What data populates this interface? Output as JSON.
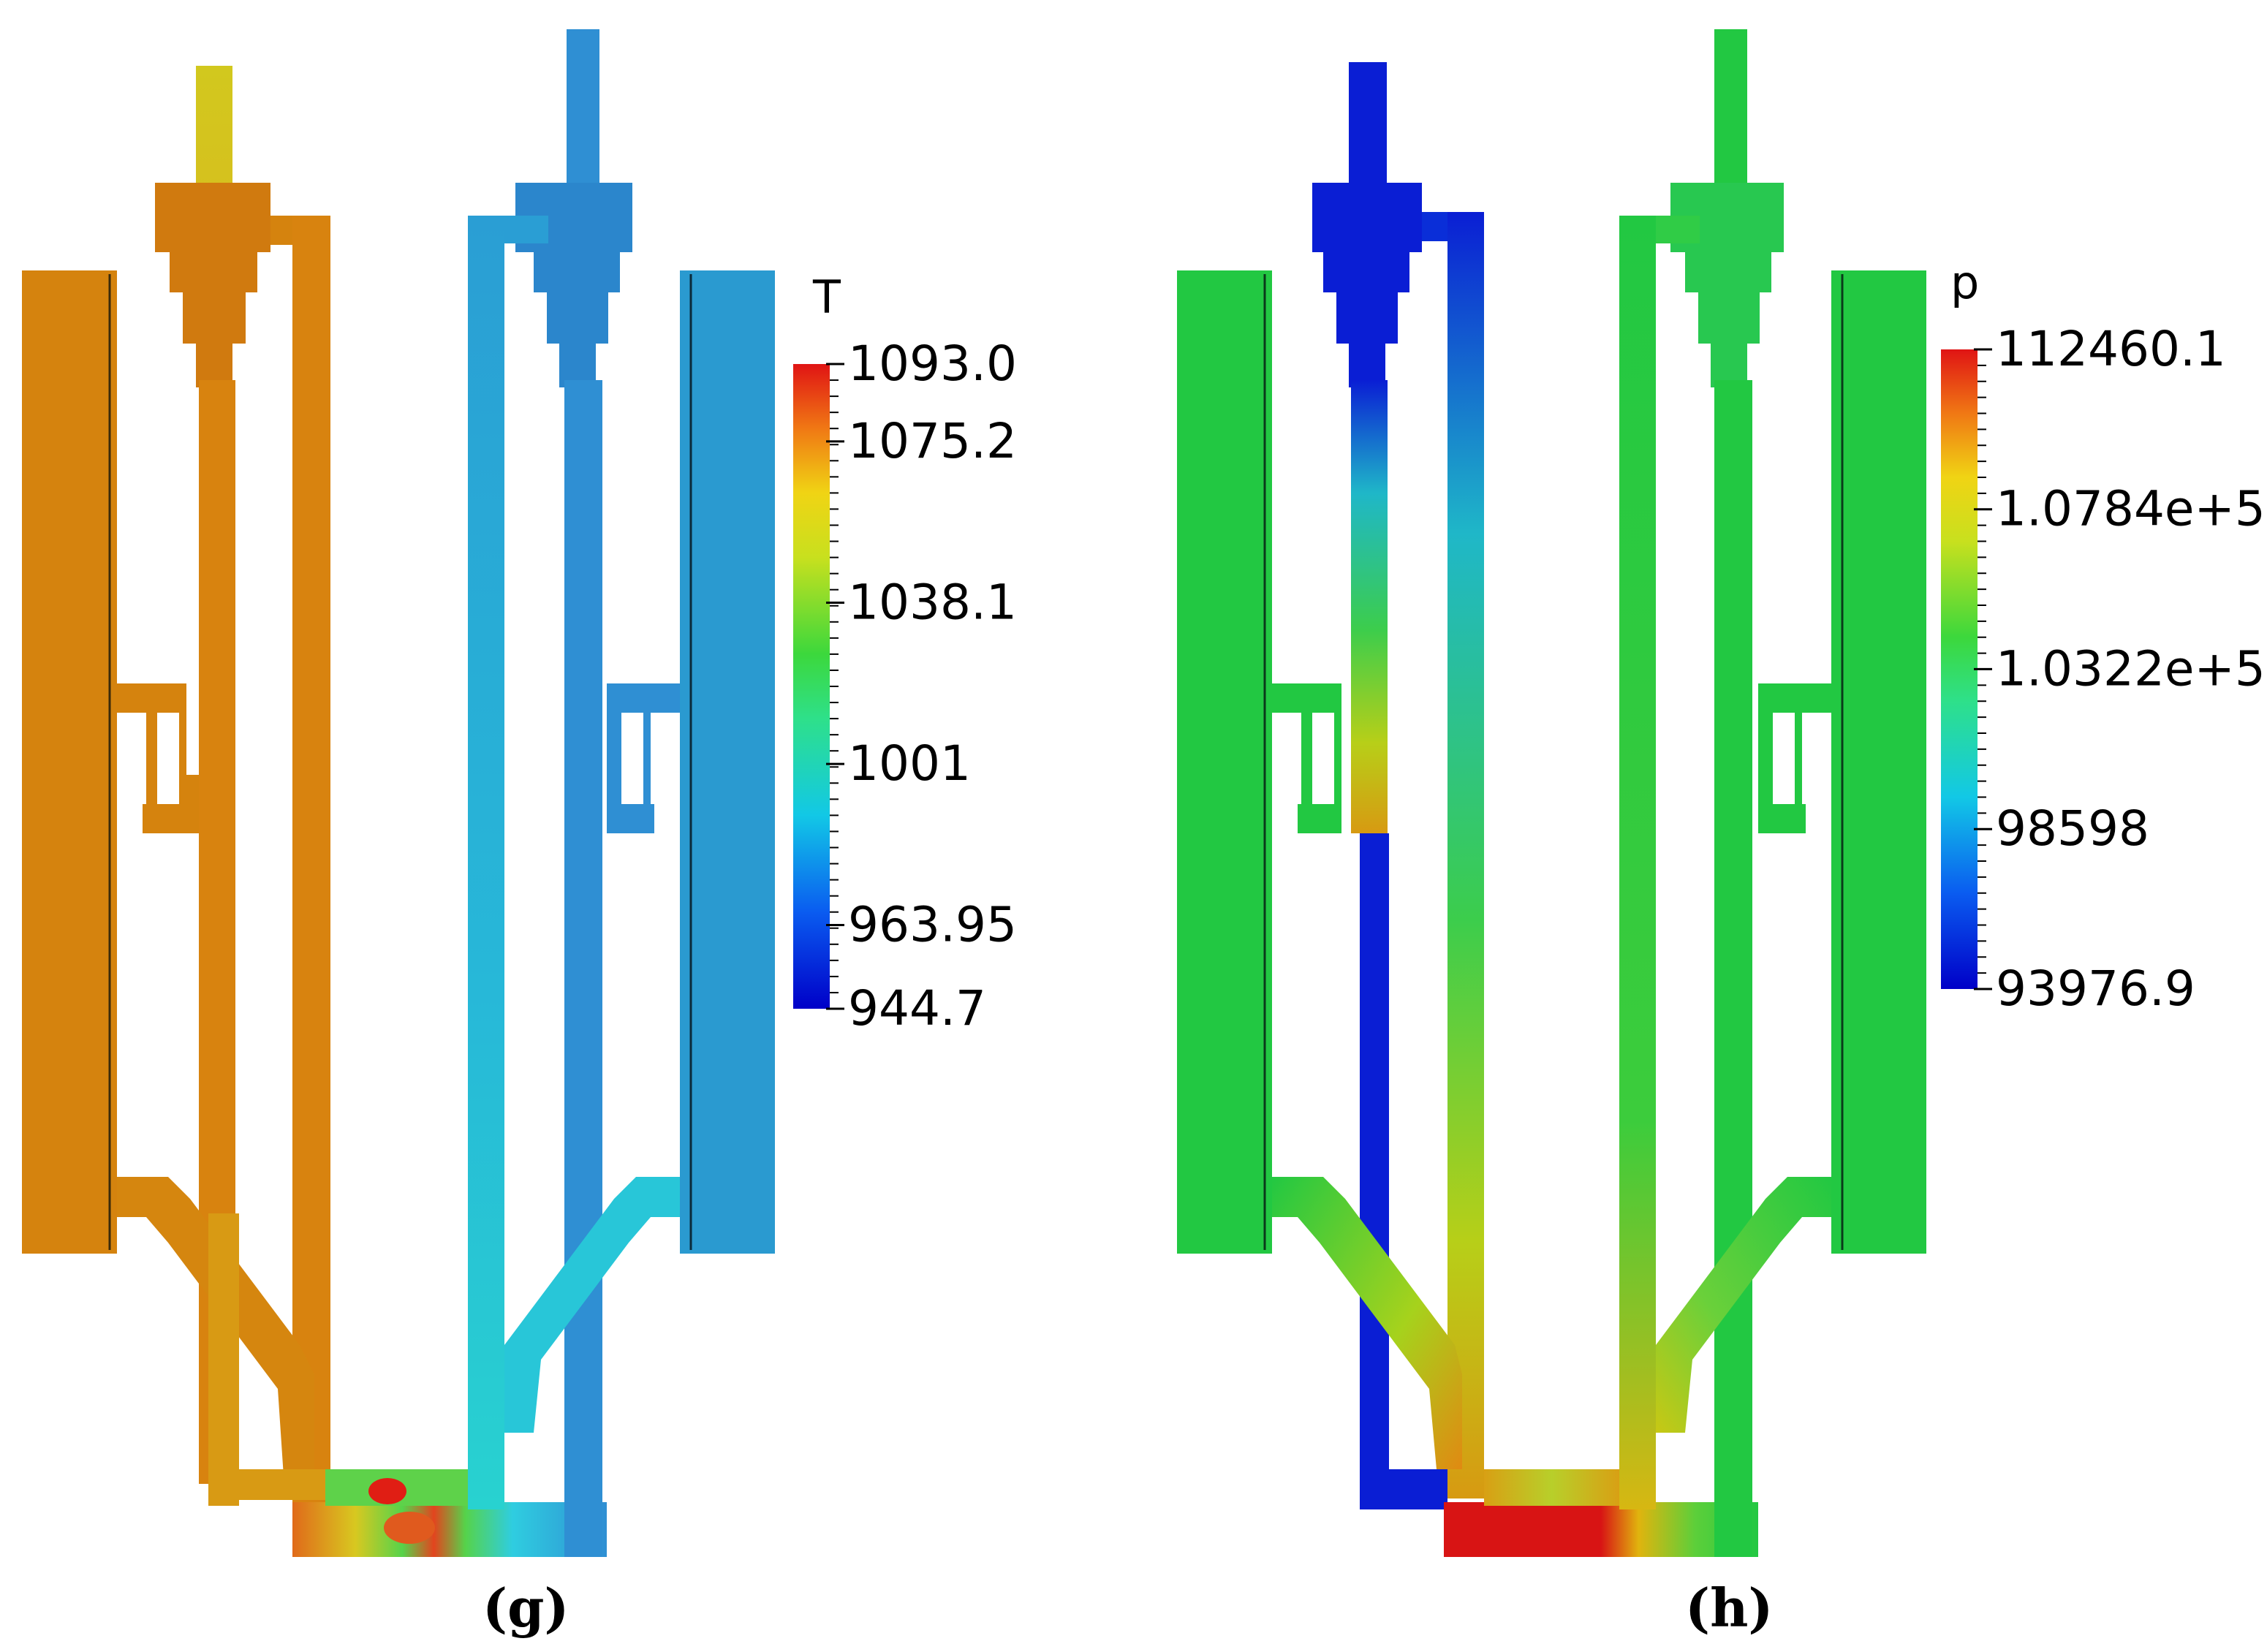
{
  "panels": [
    {
      "id": "g",
      "caption": "(g)",
      "colorbar": {
        "title": "T",
        "min": 944.7,
        "max": 1093.0,
        "ticks": [
          "1093.0",
          "1075.2",
          "1038.1",
          "1001",
          "963.95",
          "944.7"
        ],
        "tick_values": [
          1093.0,
          1075.2,
          1038.1,
          1001,
          963.95,
          944.7
        ]
      },
      "colors": {
        "left_loop": "#d5830e",
        "left_riser_top": "#d2c81e",
        "right_loop": "#2f8fd3",
        "right_reactor": "#2a9ad0",
        "cyan_pipe": "#28c6d8",
        "bottom_hot": "#e3441e",
        "bottom_green": "#56d34a"
      }
    },
    {
      "id": "h",
      "caption": "(h)",
      "colorbar": {
        "title": "p",
        "min": 93976.9,
        "max": 112460.1,
        "ticks": [
          "112460.1",
          "1.0784e+5",
          "1.0322e+5",
          "98598",
          "93976.9"
        ],
        "tick_values": [
          112460.1,
          107840,
          103220,
          98598,
          93976.9
        ]
      },
      "colors": {
        "green_body": "#22c842",
        "blue_riser": "#0a1ed4",
        "mid_pipe_top": "#1fb7c8",
        "mid_pipe_bottom": "#d7b712",
        "bottom_red": "#d81414",
        "bottom_yellow": "#e0b40e"
      }
    }
  ]
}
